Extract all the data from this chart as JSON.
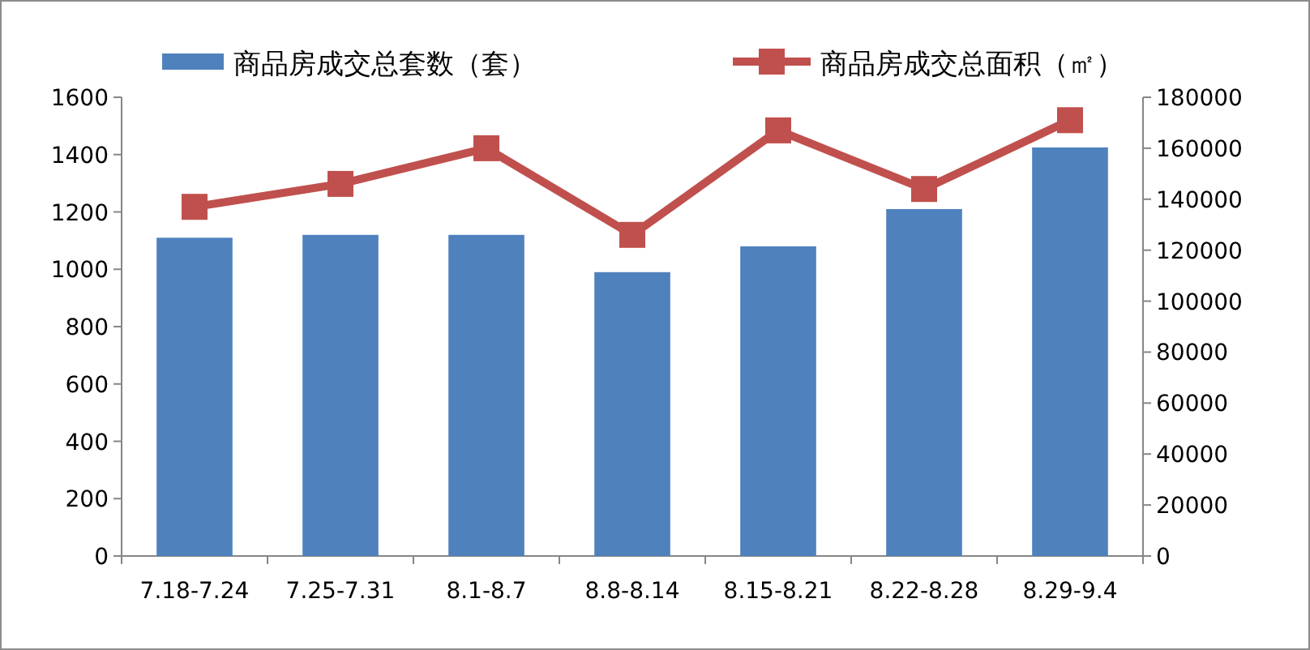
{
  "chart_data": {
    "type": "bar",
    "categories": [
      "7.18-7.24",
      "7.25-7.31",
      "8.1-8.7",
      "8.8-8.14",
      "8.15-8.21",
      "8.22-8.28",
      "8.29-9.4"
    ],
    "series": [
      {
        "name": "商品房成交总套数（套）",
        "color": "#4f81bd",
        "values": [
          1110,
          1120,
          1120,
          990,
          1080,
          1210,
          1425
        ]
      },
      {
        "name": "商品房成交总面积（㎡）",
        "type": "line",
        "axis": "y2",
        "color": "#c0504d",
        "values": [
          137000,
          146000,
          160000,
          126000,
          167000,
          144000,
          171000
        ]
      }
    ],
    "ylim": [
      0,
      1600
    ],
    "yticks": [
      0,
      200,
      400,
      600,
      800,
      1000,
      1200,
      1400,
      1600
    ],
    "y2lim": [
      0,
      180000
    ],
    "y2ticks": [
      0,
      20000,
      40000,
      60000,
      80000,
      100000,
      120000,
      140000,
      160000,
      180000
    ],
    "legend": "top",
    "marker": "square",
    "line_style": "solid"
  }
}
